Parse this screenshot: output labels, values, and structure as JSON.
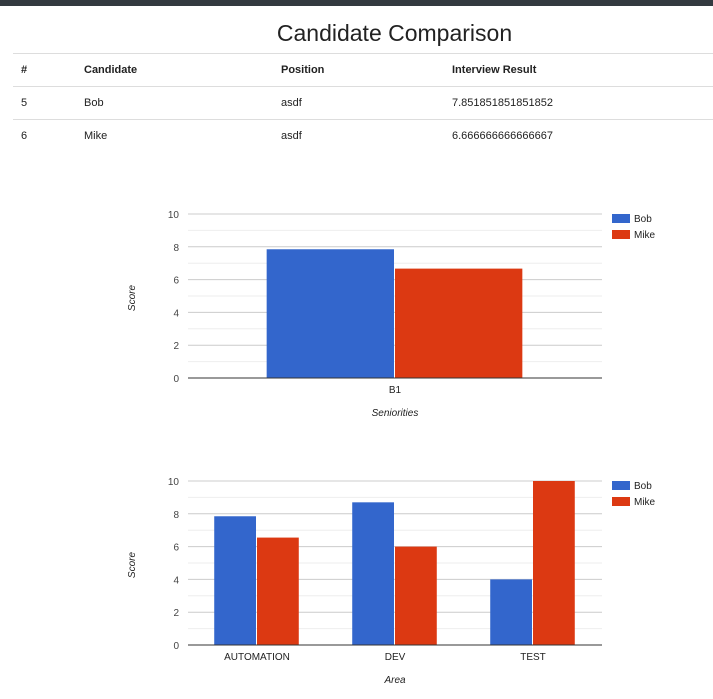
{
  "page": {
    "title": "Candidate Comparison"
  },
  "table": {
    "headers": [
      "#",
      "Candidate",
      "Position",
      "Interview Result"
    ],
    "rows": [
      [
        "5",
        "Bob",
        "asdf",
        "7.851851851851852"
      ],
      [
        "6",
        "Mike",
        "asdf",
        "6.666666666666667"
      ]
    ]
  },
  "colors": {
    "bob": "#3366cc",
    "mike": "#dc3912",
    "grid": "#cccccc",
    "minor_grid": "#eeeeee",
    "axis": "#333333",
    "topbar": "#333a40"
  },
  "chart_data": [
    {
      "type": "bar",
      "categories": [
        "B1"
      ],
      "series": [
        {
          "name": "Bob",
          "values": [
            7.85
          ]
        },
        {
          "name": "Mike",
          "values": [
            6.67
          ]
        }
      ],
      "xlabel": "Seniorities",
      "ylabel": "Score",
      "ylim": [
        0,
        10
      ],
      "yticks": [
        "0",
        "2",
        "4",
        "6",
        "8",
        "10"
      ],
      "grid": true,
      "legend": "right"
    },
    {
      "type": "bar",
      "categories": [
        "AUTOMATION",
        "DEV",
        "TEST"
      ],
      "series": [
        {
          "name": "Bob",
          "values": [
            7.85,
            8.7,
            4.0
          ]
        },
        {
          "name": "Mike",
          "values": [
            6.55,
            6.0,
            10.0
          ]
        }
      ],
      "xlabel": "Area",
      "ylabel": "Score",
      "ylim": [
        0,
        10
      ],
      "yticks": [
        "0",
        "2",
        "4",
        "6",
        "8",
        "10"
      ],
      "grid": true,
      "legend": "right"
    }
  ]
}
